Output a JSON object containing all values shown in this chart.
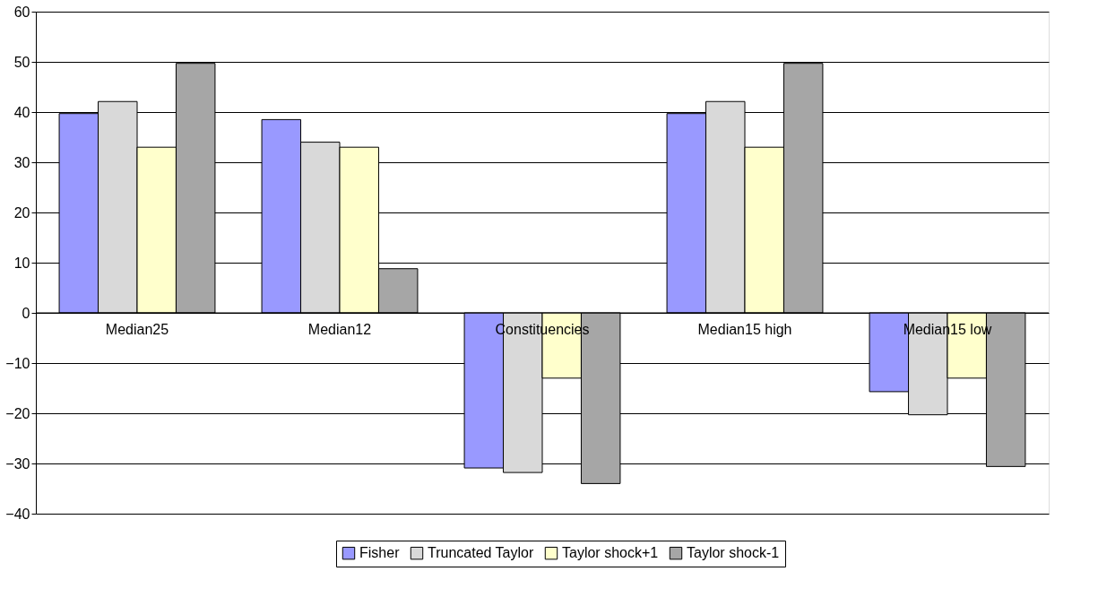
{
  "chart_data": {
    "type": "bar",
    "categories": [
      "Median25",
      "Median12",
      "Constituencies",
      "Median15 high",
      "Median15 low"
    ],
    "series": [
      {
        "name": "Fisher",
        "color": "#9999ff",
        "values": [
          39.7,
          38.5,
          -30.9,
          39.7,
          -15.7
        ]
      },
      {
        "name": "Truncated Taylor",
        "color": "#d9d9d9",
        "values": [
          42.1,
          34,
          -31.8,
          42.1,
          -20.3
        ]
      },
      {
        "name": "Taylor shock+1",
        "color": "#ffffcc",
        "values": [
          33,
          33,
          -13,
          33,
          -13
        ]
      },
      {
        "name": "Taylor shock-1",
        "color": "#a6a6a6",
        "values": [
          49.7,
          8.8,
          -34,
          49.7,
          -30.6
        ]
      }
    ],
    "ylim": [
      -40,
      60
    ],
    "yticks": [
      -40,
      -30,
      -20,
      -10,
      0,
      10,
      20,
      30,
      40,
      50,
      60
    ],
    "grid": "y",
    "legend": "bottom"
  }
}
